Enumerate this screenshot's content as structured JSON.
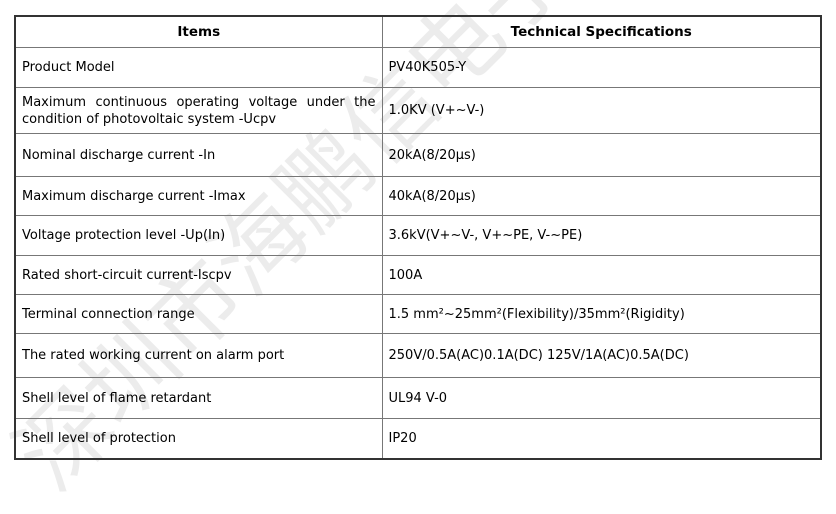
{
  "watermark": "深圳市海鹏信电子",
  "headers": {
    "items": "Items",
    "specs": "Technical Specifications"
  },
  "rows": [
    {
      "item": "Product Model",
      "spec": "PV40K505-Y"
    },
    {
      "item": "Maximum continuous operating voltage under the condition of photovoltaic system -Ucpv",
      "spec": "1.0KV (V+~V-)"
    },
    {
      "item": "Nominal discharge current -In",
      "spec": "20kA(8/20μs)"
    },
    {
      "item": "Maximum discharge current -Imax",
      "spec": "40kA(8/20μs)"
    },
    {
      "item": "Voltage protection level -Up(In)",
      "spec": "3.6kV(V+~V-, V+~PE, V-~PE)"
    },
    {
      "item": "Rated short-circuit current-Iscpv",
      "spec": "100A"
    },
    {
      "item": "Terminal connection range",
      "spec": "1.5 mm²~25mm²(Flexibility)/35mm²(Rigidity)"
    },
    {
      "item": "The rated working current on alarm port",
      "spec": "250V/0.5A(AC)0.1A(DC) 125V/1A(AC)0.5A(DC)"
    },
    {
      "item": "Shell level of flame retardant",
      "spec": "UL94 V-0"
    },
    {
      "item": "Shell level of protection",
      "spec": "IP20"
    }
  ]
}
